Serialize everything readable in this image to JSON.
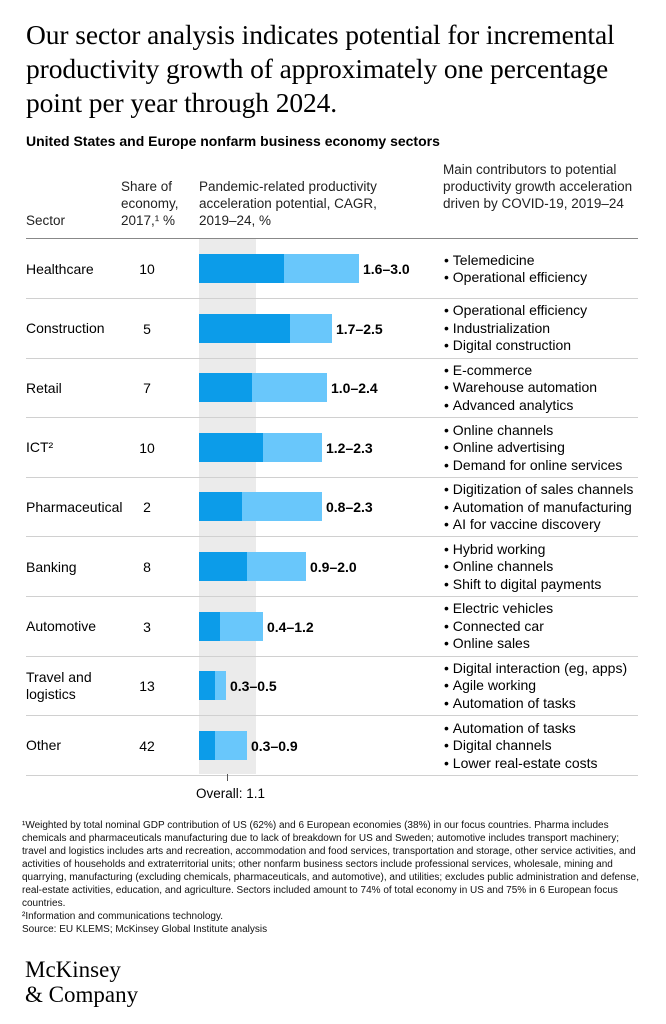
{
  "title": "Our sector analysis indicates potential for incremental productivity growth of approximately one percentage point per year through 2024.",
  "subtitle": "United States and Europe nonfarm business economy sectors",
  "headers": {
    "sector": "Sector",
    "share": "Share of economy, 2017,¹ %",
    "acceleration": "Pandemic-related productivity acceleration potential, CAGR, 2019–24, %",
    "contributors": "Main contributors to potential productivity growth acceleration driven by COVID-19, 2019–24"
  },
  "chart_data": {
    "type": "bar",
    "title": "Pandemic-related productivity acceleration potential, CAGR, 2019–24, %",
    "orientation": "horizontal",
    "range_style": "low-high stacked",
    "categories": [
      "Healthcare",
      "Construction",
      "Retail",
      "ICT²",
      "Pharmaceutical",
      "Banking",
      "Automotive",
      "Travel and logistics",
      "Other"
    ],
    "series": [
      {
        "name": "Low estimate",
        "values": [
          1.6,
          1.7,
          1.0,
          1.2,
          0.8,
          0.9,
          0.4,
          0.3,
          0.3
        ]
      },
      {
        "name": "High estimate",
        "values": [
          3.0,
          2.5,
          2.4,
          2.3,
          2.3,
          2.0,
          1.2,
          0.5,
          0.9
        ]
      }
    ],
    "xlim": [
      0,
      3.0
    ],
    "overall_label": "Overall: 1.1",
    "overall_value": 1.1
  },
  "rows": [
    {
      "sector": "Healthcare",
      "share": "10",
      "range": "1.6–3.0",
      "contributors": [
        "Telemedicine",
        "Operational efficiency"
      ]
    },
    {
      "sector": "Construction",
      "share": "5",
      "range": "1.7–2.5",
      "contributors": [
        "Operational efficiency",
        "Industrialization",
        "Digital construction"
      ]
    },
    {
      "sector": "Retail",
      "share": "7",
      "range": "1.0–2.4",
      "contributors": [
        "E-commerce",
        "Warehouse automation",
        "Advanced analytics"
      ]
    },
    {
      "sector": "ICT²",
      "share": "10",
      "range": "1.2–2.3",
      "contributors": [
        "Online channels",
        "Online advertising",
        "Demand for online services"
      ]
    },
    {
      "sector": "Pharmaceutical",
      "share": "2",
      "range": "0.8–2.3",
      "contributors": [
        "Digitization of sales channels",
        "Automation of manufacturing",
        "AI for vaccine discovery"
      ]
    },
    {
      "sector": "Banking",
      "share": "8",
      "range": "0.9–2.0",
      "contributors": [
        "Hybrid working",
        "Online channels",
        "Shift to digital payments"
      ]
    },
    {
      "sector": "Automotive",
      "share": "3",
      "range": "0.4–1.2",
      "contributors": [
        "Electric vehicles",
        "Connected car",
        "Online sales"
      ]
    },
    {
      "sector": "Travel and logistics",
      "share": "13",
      "range": "0.3–0.5",
      "contributors": [
        "Digital interaction (eg, apps)",
        "Agile working",
        "Automation of tasks"
      ]
    },
    {
      "sector": "Other",
      "share": "42",
      "range": "0.3–0.9",
      "contributors": [
        "Automation of tasks",
        "Digital channels",
        "Lower real-estate costs"
      ]
    }
  ],
  "footnotes": {
    "note1": "¹Weighted by total nominal GDP contribution of US (62%) and 6 European economies (38%) in our focus countries. Pharma includes chemicals and pharmaceuticals manufacturing due to lack of breakdown for US and Sweden; automotive includes transport machinery; travel and logistics includes arts and recreation, accommodation and food services, transportation and storage, other service activities, and activities of households and extraterritorial units; other nonfarm business sectors include professional services, wholesale, mining and quarrying, manufacturing (excluding chemicals, pharmaceuticals, and automotive), and utilities; excludes public administration and defense, real-estate activities, education, and agriculture. Sectors included amount to 74% of total economy in US and 75% in 6 European focus countries.",
    "note2": "²Information and communications technology.",
    "source": "Source: EU KLEMS; McKinsey Global Institute analysis"
  },
  "logo": {
    "line1": "McKinsey",
    "line2": "& Company"
  },
  "colors": {
    "low_bar": "#0c9ce9",
    "high_bar": "#69c7fb",
    "band": "#ebebeb"
  }
}
